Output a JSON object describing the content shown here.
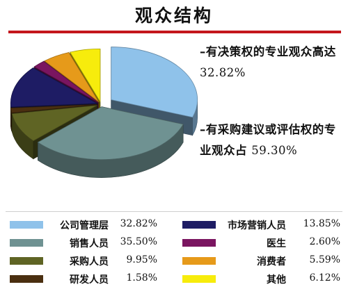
{
  "title": "观众结构",
  "notes": [
    {
      "lead": "–有决策权的专业观众高达",
      "value": "32.82%"
    },
    {
      "lead": "–有采购建议或评估权的专业观众占",
      "value": "59.30%"
    }
  ],
  "chart_data": {
    "type": "pie",
    "style": "3d-exploded",
    "title": "观众结构",
    "slices": [
      {
        "label": "公司管理层",
        "value": 32.82,
        "value_label": "32.82%",
        "color": "#8fc2ea"
      },
      {
        "label": "销售人员",
        "value": 35.5,
        "value_label": "35.50%",
        "color": "#6f9292"
      },
      {
        "label": "采购人员",
        "value": 9.95,
        "value_label": "9.95%",
        "color": "#5f6424"
      },
      {
        "label": "研发人员",
        "value": 1.58,
        "value_label": "1.58%",
        "color": "#4a2f10"
      },
      {
        "label": "市场营销人员",
        "value": 13.85,
        "value_label": "13.85%",
        "color": "#1e1c64"
      },
      {
        "label": "医生",
        "value": 2.6,
        "value_label": "2.60%",
        "color": "#7a1560"
      },
      {
        "label": "消费者",
        "value": 5.59,
        "value_label": "5.59%",
        "color": "#e69a1a"
      },
      {
        "label": "其他",
        "value": 6.12,
        "value_label": "6.12%",
        "color": "#f7ec0c"
      }
    ],
    "legend_placement": "bottom"
  },
  "colors": {
    "accent_rule": "#c4161c"
  }
}
